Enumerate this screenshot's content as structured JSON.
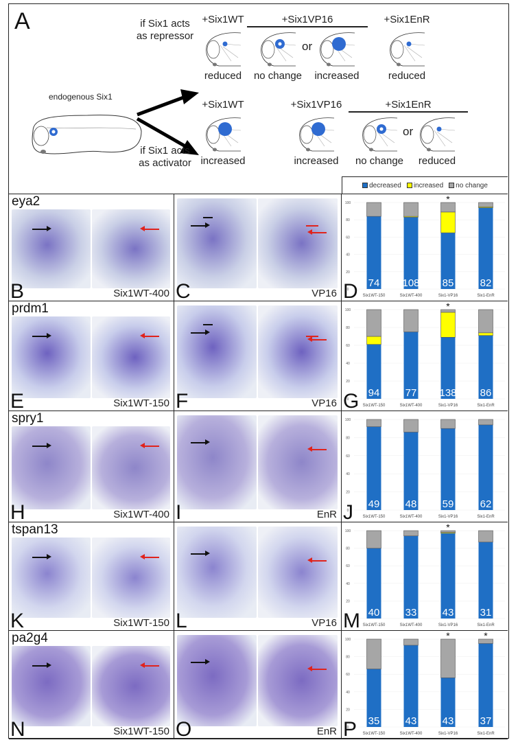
{
  "panel_a": {
    "letter": "A",
    "endogenous_label": "endogenous Six1",
    "repressor_text": [
      "if Six1 acts",
      "as repressor"
    ],
    "activator_text": [
      "if Six1 acts",
      "as activator"
    ],
    "or_label": "or",
    "repressor_row": [
      {
        "header": "+Six1WT",
        "items": [
          {
            "label": "reduced",
            "spot": "small"
          }
        ]
      },
      {
        "header": "+Six1VP16",
        "items": [
          {
            "label": "no change",
            "spot": "ring"
          },
          {
            "label": "increased",
            "spot": "large"
          }
        ]
      },
      {
        "header": "+Six1EnR",
        "items": [
          {
            "label": "reduced",
            "spot": "small"
          }
        ]
      }
    ],
    "activator_row": [
      {
        "header": "+Six1WT",
        "items": [
          {
            "label": "increased",
            "spot": "large"
          }
        ]
      },
      {
        "header": "+Six1VP16",
        "items": [
          {
            "label": "increased",
            "spot": "large"
          }
        ]
      },
      {
        "header": "+Six1EnR",
        "items": [
          {
            "label": "no change",
            "spot": "ring"
          },
          {
            "label": "reduced",
            "spot": "small"
          }
        ]
      }
    ]
  },
  "legend": [
    {
      "label": "decreased",
      "color": "#1f6fc5"
    },
    {
      "label": "increased",
      "color": "#ffff00"
    },
    {
      "label": "no change",
      "color": "#a6a6a6"
    }
  ],
  "rows": [
    {
      "gene": "eya2",
      "left_letter": "B",
      "left_condition": "Six1WT-400",
      "mid_letter": "C",
      "mid_condition": "VP16",
      "chart_letter": "D"
    },
    {
      "gene": "prdm1",
      "left_letter": "E",
      "left_condition": "Six1WT-150",
      "mid_letter": "F",
      "mid_condition": "VP16",
      "chart_letter": "G"
    },
    {
      "gene": "spry1",
      "left_letter": "H",
      "left_condition": "Six1WT-400",
      "mid_letter": "I",
      "mid_condition": "EnR",
      "chart_letter": "J"
    },
    {
      "gene": "tspan13",
      "left_letter": "K",
      "left_condition": "Six1WT-150",
      "mid_letter": "L",
      "mid_condition": "VP16",
      "chart_letter": "M"
    },
    {
      "gene": "pa2g4",
      "left_letter": "N",
      "left_condition": "Six1WT-150",
      "mid_letter": "O",
      "mid_condition": "EnR",
      "chart_letter": "P"
    }
  ],
  "chart_data": [
    {
      "type": "bar",
      "stacked": true,
      "panel": "D",
      "categories": [
        "Six1WT-150",
        "Six1WT-400",
        "Six1-VP16",
        "Six1-EnR"
      ],
      "ylim": [
        0,
        100
      ],
      "yticks": [
        0,
        20,
        40,
        60,
        80,
        100
      ],
      "series": [
        {
          "name": "decreased",
          "values": [
            84,
            83,
            65,
            94
          ]
        },
        {
          "name": "increased",
          "values": [
            0,
            1,
            24,
            1
          ]
        },
        {
          "name": "no change",
          "values": [
            16,
            16,
            11,
            5
          ]
        }
      ],
      "n": [
        "74",
        "108",
        "85",
        "82"
      ],
      "significance": [
        "",
        "",
        "*",
        ""
      ]
    },
    {
      "type": "bar",
      "stacked": true,
      "panel": "G",
      "categories": [
        "Six1WT-150",
        "Six1WT-400",
        "Six1-VP16",
        "Six1-EnR"
      ],
      "ylim": [
        0,
        100
      ],
      "yticks": [
        0,
        20,
        40,
        60,
        80,
        100
      ],
      "series": [
        {
          "name": "decreased",
          "values": [
            61,
            75,
            69,
            71
          ]
        },
        {
          "name": "increased",
          "values": [
            9,
            0,
            28,
            3
          ]
        },
        {
          "name": "no change",
          "values": [
            30,
            25,
            3,
            26
          ]
        }
      ],
      "n": [
        "94",
        "77",
        "138",
        "86"
      ],
      "significance": [
        "",
        "",
        "*",
        ""
      ]
    },
    {
      "type": "bar",
      "stacked": true,
      "panel": "J",
      "categories": [
        "Six1WT-150",
        "Six1WT-400",
        "Six1-VP16",
        "Six1-EnR"
      ],
      "ylim": [
        0,
        100
      ],
      "yticks": [
        0,
        20,
        40,
        60,
        80,
        100
      ],
      "series": [
        {
          "name": "decreased",
          "values": [
            92,
            86,
            90,
            94
          ]
        },
        {
          "name": "increased",
          "values": [
            0,
            0,
            0,
            0
          ]
        },
        {
          "name": "no change",
          "values": [
            8,
            14,
            10,
            6
          ]
        }
      ],
      "n": [
        "49",
        "48",
        "59",
        "62"
      ],
      "significance": [
        "",
        "",
        "",
        ""
      ]
    },
    {
      "type": "bar",
      "stacked": true,
      "panel": "M",
      "categories": [
        "Six1WT-150",
        "Six1WT-400",
        "Six1-VP16",
        "Six1-EnR"
      ],
      "ylim": [
        0,
        100
      ],
      "yticks": [
        0,
        20,
        40,
        60,
        80,
        100
      ],
      "series": [
        {
          "name": "decreased",
          "values": [
            80,
            94,
            97,
            87
          ]
        },
        {
          "name": "increased",
          "values": [
            0,
            0,
            1,
            0
          ]
        },
        {
          "name": "no change",
          "values": [
            20,
            6,
            2,
            13
          ]
        }
      ],
      "n": [
        "40",
        "33",
        "43",
        "31"
      ],
      "significance": [
        "",
        "",
        "*",
        ""
      ]
    },
    {
      "type": "bar",
      "stacked": true,
      "panel": "P",
      "categories": [
        "Six1WT-150",
        "Six1WT-400",
        "Six1-VP16",
        "Six1-EnR"
      ],
      "ylim": [
        0,
        100
      ],
      "yticks": [
        0,
        20,
        40,
        60,
        80,
        100
      ],
      "series": [
        {
          "name": "decreased",
          "values": [
            66,
            93,
            56,
            95
          ]
        },
        {
          "name": "increased",
          "values": [
            0,
            0,
            0,
            0
          ]
        },
        {
          "name": "no change",
          "values": [
            34,
            7,
            44,
            5
          ]
        }
      ],
      "n": [
        "35",
        "43",
        "43",
        "37"
      ],
      "significance": [
        "",
        "",
        "*",
        "*"
      ]
    }
  ]
}
